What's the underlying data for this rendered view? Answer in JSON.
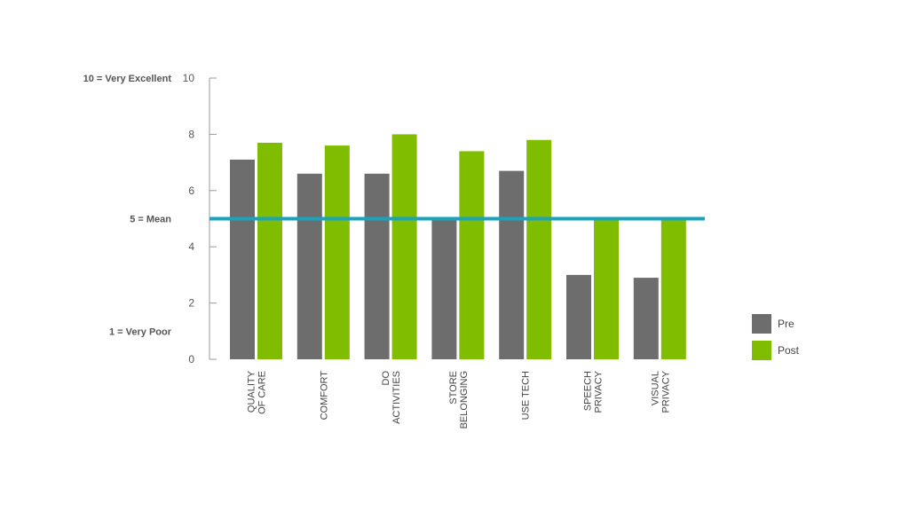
{
  "chart_data": {
    "type": "bar",
    "categories": [
      [
        "QUALITY",
        "OF CARE"
      ],
      [
        "COMFORT"
      ],
      [
        "DO",
        "ACTIVITIES"
      ],
      [
        "STORE",
        "BELONGING"
      ],
      [
        "USE TECH"
      ],
      [
        "SPEECH",
        "PRIVACY"
      ],
      [
        "VISUAL",
        "PRIVACY"
      ]
    ],
    "series": [
      {
        "name": "Pre",
        "color": "#6d6d6d",
        "values": [
          7.1,
          6.6,
          6.6,
          5.0,
          6.7,
          3.0,
          2.9
        ]
      },
      {
        "name": "Post",
        "color": "#80bc00",
        "values": [
          7.7,
          7.6,
          8.0,
          7.4,
          7.8,
          5.0,
          5.0
        ]
      }
    ],
    "ylim": [
      0,
      10
    ],
    "yticks": [
      "0",
      "2",
      "4",
      "6",
      "8",
      "10"
    ],
    "reference_line": {
      "value": 5,
      "color": "#1aa3bf"
    },
    "annotations": [
      {
        "y": 10,
        "text": "10 = Very Excellent"
      },
      {
        "y": 5,
        "text": "5 = Mean"
      },
      {
        "y": 1,
        "text": "1 = Very Poor"
      }
    ],
    "legend": "right",
    "grid": false
  }
}
